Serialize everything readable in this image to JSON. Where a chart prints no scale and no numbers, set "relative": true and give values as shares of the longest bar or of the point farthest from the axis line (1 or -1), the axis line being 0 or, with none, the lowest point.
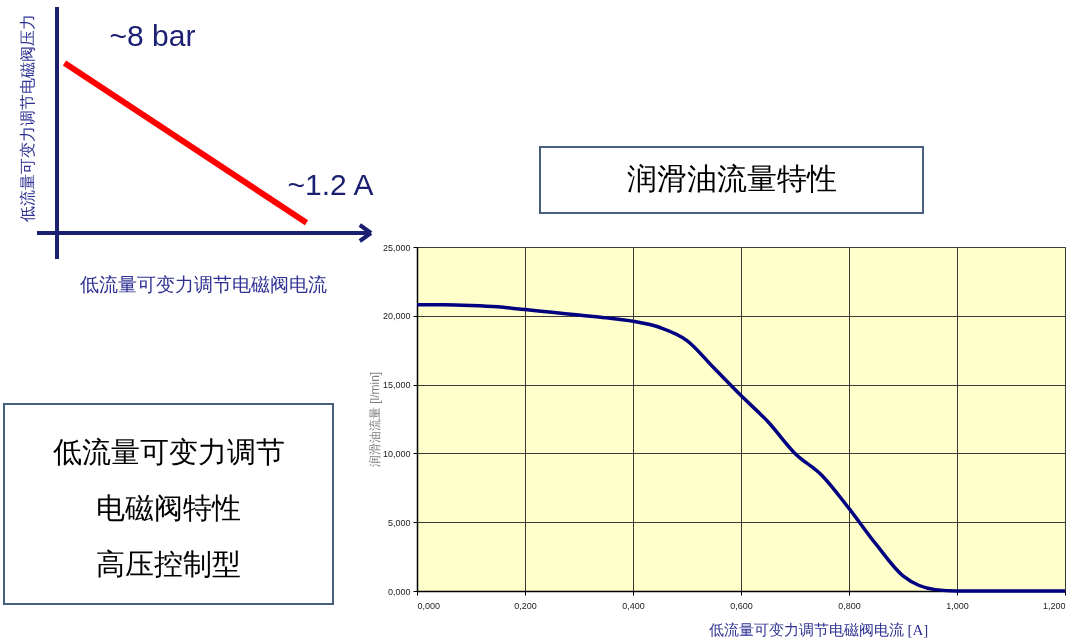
{
  "chart_data": [
    {
      "type": "line",
      "xlabel": "低流量可变力调节电磁阀电流",
      "ylabel": "低流量可变力调节电磁阀压力",
      "relative": true,
      "categories": [
        null,
        null
      ],
      "series": [
        {
          "color": "#ff0000",
          "values": [
            1,
            0.06
          ]
        }
      ],
      "annotations": [
        "~8 bar",
        "~1.2 A"
      ]
    },
    {
      "type": "line",
      "title": "润滑油流量特性",
      "xlabel": "低流量可变力调节电磁阀电流 [A]",
      "ylabel": "润滑油流量 [l/min]",
      "x": [
        0,
        0.05,
        0.1,
        0.15,
        0.2,
        0.25,
        0.3,
        0.35,
        0.4,
        0.45,
        0.5,
        0.55,
        0.6,
        0.65,
        0.7,
        0.75,
        0.8,
        0.85,
        0.9,
        0.93,
        0.96,
        1.0,
        1.2
      ],
      "series": [
        {
          "color": "#000080",
          "values": [
            20.8,
            20.8,
            20.75,
            20.65,
            20.45,
            20.25,
            20.05,
            19.85,
            19.6,
            19.15,
            18.2,
            16.2,
            14.2,
            12.3,
            10.0,
            8.4,
            6.0,
            3.4,
            1.1,
            0.4,
            0.1,
            0,
            0
          ]
        }
      ],
      "xlim": [
        0,
        1.2
      ],
      "ylim": [
        0,
        25
      ],
      "xticks": [
        {
          "value": 0,
          "label": "0,000"
        },
        {
          "value": 0.2,
          "label": "0,200"
        },
        {
          "value": 0.4,
          "label": "0,400"
        },
        {
          "value": 0.6,
          "label": "0,600"
        },
        {
          "value": 0.8,
          "label": "0,800"
        },
        {
          "value": 1.0,
          "label": "1,000"
        },
        {
          "value": 1.2,
          "label": "1,200"
        }
      ],
      "yticks": [
        {
          "value": 0,
          "label": "0,000"
        },
        {
          "value": 5,
          "label": "5,000"
        },
        {
          "value": 10,
          "label": "10,000"
        },
        {
          "value": 15,
          "label": "15,000"
        },
        {
          "value": 20,
          "label": "20,000"
        },
        {
          "value": 25,
          "label": "25,000"
        }
      ],
      "grid": true
    },
    {
      "type": "other",
      "annotations": [
        "低流量可变力调节",
        "电磁阀特性",
        "高压控制型"
      ]
    }
  ]
}
